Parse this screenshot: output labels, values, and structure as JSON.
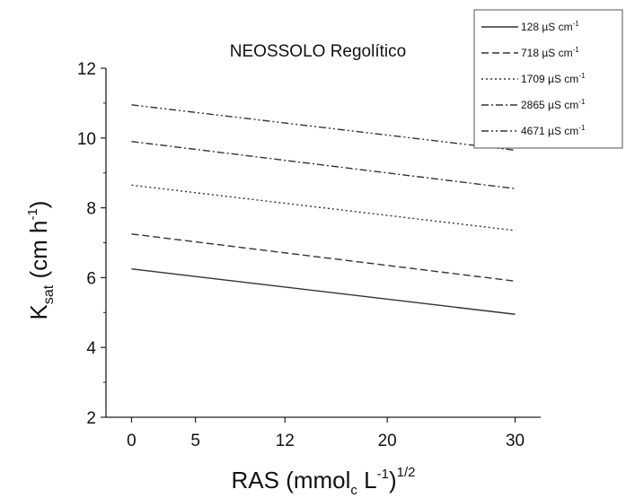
{
  "chart_data": {
    "type": "line",
    "title": "NEOSSOLO Regolítico",
    "ylabel": {
      "main": "K",
      "sub": "sat",
      "unit_pre": " (cm h",
      "unit_sup": "-1",
      "unit_post": ")"
    },
    "xlabel": {
      "pre": "RAS (mmol",
      "sub": "c",
      "mid": " L",
      "sup1": "-1",
      "post": ")",
      "sup2": "1/2"
    },
    "xlim": [
      -2,
      32
    ],
    "ylim": [
      2,
      12
    ],
    "x_ticks": [
      0,
      5,
      12,
      20,
      30
    ],
    "x_tick_labels": [
      "0",
      "5",
      "12",
      "20",
      "30"
    ],
    "y_ticks": [
      2,
      4,
      6,
      8,
      10,
      12
    ],
    "y_tick_labels": [
      "2",
      "4",
      "6",
      "8",
      "10",
      "12"
    ],
    "legend_position": "top-right",
    "series": [
      {
        "name": "128 µS cm",
        "name_sup": "-1",
        "dash": "solid",
        "x": [
          0,
          30
        ],
        "y": [
          6.25,
          4.95
        ]
      },
      {
        "name": "718 µS cm",
        "name_sup": "-1",
        "dash": "dashed",
        "x": [
          0,
          30
        ],
        "y": [
          7.25,
          5.9
        ]
      },
      {
        "name": "1709 µS cm",
        "name_sup": "-1",
        "dash": "dotted",
        "x": [
          0,
          30
        ],
        "y": [
          8.65,
          7.35
        ]
      },
      {
        "name": "2865 µS cm",
        "name_sup": "-1",
        "dash": "dashdot",
        "x": [
          0,
          30
        ],
        "y": [
          9.9,
          8.55
        ]
      },
      {
        "name": "4671 µS cm",
        "name_sup": "-1",
        "dash": "dashdotdot",
        "x": [
          0,
          30
        ],
        "y": [
          10.95,
          9.65
        ]
      }
    ],
    "colors": {
      "line": "#333333",
      "axis": "#222222",
      "legend_border": "#555555"
    }
  }
}
